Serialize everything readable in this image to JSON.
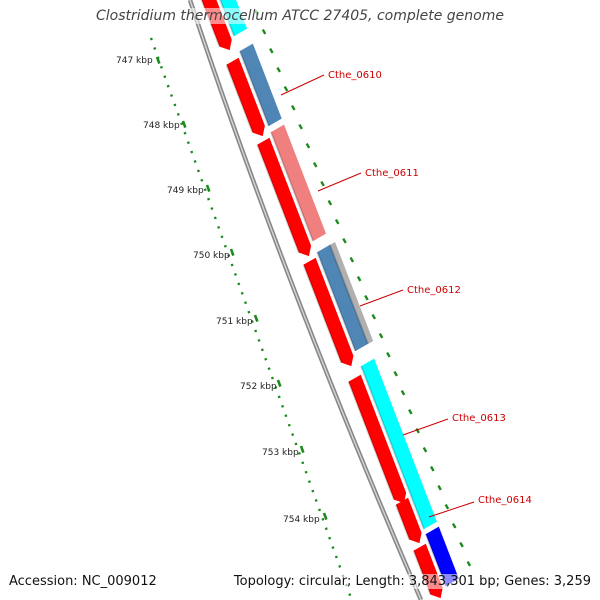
{
  "title": "Clostridium thermocellum ATCC 27405, complete genome",
  "footer": {
    "accession": "Accession: NC_009012",
    "info": "Topology: circular; Length: 3,843,301 bp; Genes: 3,259"
  },
  "ruler": {
    "unit": "kbp",
    "labels": [
      "747 kbp",
      "748 kbp",
      "749 kbp",
      "750 kbp",
      "751 kbp",
      "752 kbp",
      "753 kbp",
      "754 kbp"
    ],
    "color": "#1a8a1a"
  },
  "colors": {
    "backbone": "#888888",
    "cds_forward": "#ff0000",
    "cds_reverse": "#ff0000",
    "cyan": "#00ffff",
    "steelblue": "#4f86b6",
    "pink": "#f08080",
    "gray": "#b0b0b0",
    "blue": "#0000ff",
    "label": "#cc0000",
    "tick": "#1a8a1a"
  },
  "genes": [
    {
      "label": "Cthe_0610",
      "color_key": "steelblue"
    },
    {
      "label": "Cthe_0611",
      "color_key": "pink"
    },
    {
      "label": "Cthe_0612",
      "color_key": "steelblue"
    },
    {
      "label": "Cthe_0613",
      "color_key": "cyan"
    },
    {
      "label": "Cthe_0614",
      "color_key": "cyan"
    }
  ]
}
